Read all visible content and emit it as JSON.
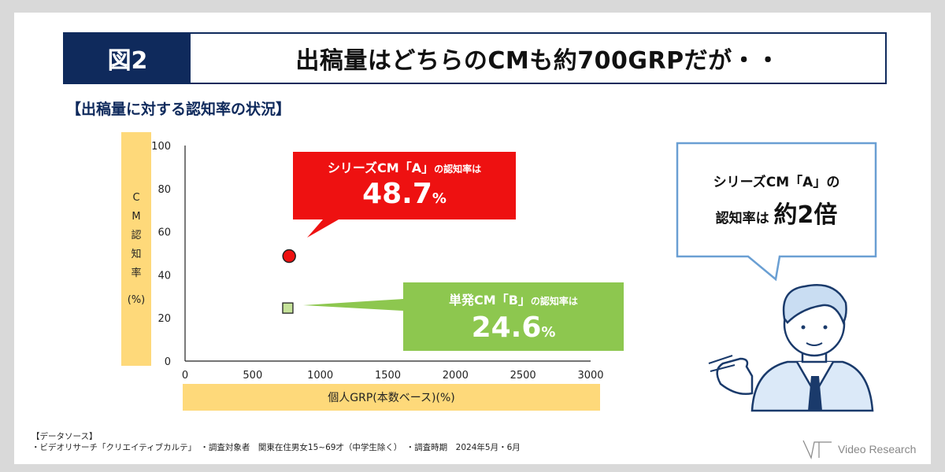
{
  "header": {
    "badge": "図2",
    "title": "出稿量はどちらのCMも約700GRPだが・・"
  },
  "subtitle": "【出稿量に対する認知率の状況】",
  "chart_data": {
    "type": "scatter",
    "xlabel": "個人GRP(本数ベース)(%)",
    "ylabel_chars": [
      "C",
      "M",
      "認",
      "知",
      "率"
    ],
    "ylabel_unit": "(%)",
    "xlim": [
      0,
      3000
    ],
    "ylim": [
      0,
      100
    ],
    "x_ticks": [
      0,
      500,
      1000,
      1500,
      2000,
      2500,
      3000
    ],
    "y_ticks": [
      0,
      20,
      40,
      60,
      80,
      100
    ],
    "grid": false,
    "series": [
      {
        "x": 770,
        "y": 48.7,
        "marker": "circle",
        "color": "#ee1111"
      },
      {
        "x": 760,
        "y": 24.6,
        "marker": "square",
        "color": "#c6e39a"
      }
    ]
  },
  "callouts": {
    "a": {
      "label": "シリーズCM「A」",
      "label_suffix": "の認知率は",
      "value": "48.7",
      "unit": "%",
      "color": "#ee1111"
    },
    "b": {
      "label": "単発CM「B」",
      "label_suffix": "の認知率は",
      "value": "24.6",
      "unit": "%",
      "color": "#8dc74f"
    }
  },
  "bubble": {
    "line1": "シリーズCM「A」の",
    "line2_prefix": "認知率は",
    "line2_big": "約2倍"
  },
  "footer": {
    "source_title": "【データソース】",
    "source_detail": "・ビデオリサーチ「クリエイティブカルテ」　・調査対象者　関東在住男女15~69才（中学生除く）　・調査時期　2024年5月・6月"
  },
  "logo": {
    "text": "Video Research"
  }
}
